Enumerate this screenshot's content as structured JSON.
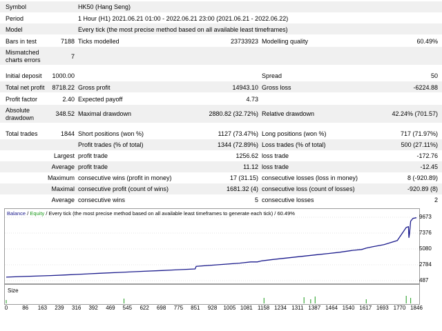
{
  "report": {
    "symbol_label": "Symbol",
    "symbol_value": "HK50 (Hang Seng)",
    "period_label": "Period",
    "period_value": "1 Hour (H1) 2021.06.21 01:00 - 2022.06.21 23:00 (2021.06.21 - 2022.06.22)",
    "model_label": "Model",
    "model_value": "Every tick (the most precise method based on all available least timeframes)",
    "bars_label": "Bars in test",
    "bars_value": "7188",
    "ticks_label": "Ticks modelled",
    "ticks_value": "23733923",
    "quality_label": "Modelling quality",
    "quality_value": "60.49%",
    "mismatch_label_1": "Mismatched",
    "mismatch_label_2": "charts errors",
    "mismatch_value": "7",
    "deposit_label": "Initial deposit",
    "deposit_value": "1000.00",
    "spread_label": "Spread",
    "spread_value": "50",
    "netprofit_label": "Total net profit",
    "netprofit_value": "8718.22",
    "grossprofit_label": "Gross profit",
    "grossprofit_value": "14943.10",
    "grossloss_label": "Gross loss",
    "grossloss_value": "-6224.88",
    "pf_label": "Profit factor",
    "pf_value": "2.40",
    "ep_label": "Expected payoff",
    "ep_value": "4.73",
    "absdd_label_1": "Absolute",
    "absdd_label_2": "drawdown",
    "absdd_value": "348.52",
    "maxdd_label": "Maximal drawdown",
    "maxdd_value": "2880.82 (32.72%)",
    "reldd_label": "Relative drawdown",
    "reldd_value": "42.24% (701.57)",
    "trades_label": "Total trades",
    "trades_value": "1844",
    "short_label": "Short positions (won %)",
    "short_value": "1127 (73.47%)",
    "long_label": "Long positions (won %)",
    "long_value": "717 (71.97%)",
    "ptrades_label": "Profit trades (% of total)",
    "ptrades_value": "1344 (72.89%)",
    "ltrades_label": "Loss trades (% of total)",
    "ltrades_value": "500 (27.11%)",
    "largest_label": "Largest",
    "largest_profit_label": "profit trade",
    "largest_profit_value": "1256.62",
    "largest_loss_label": "loss trade",
    "largest_loss_value": "-172.76",
    "average_label": "Average",
    "average_profit_label": "profit trade",
    "average_profit_value": "11.12",
    "average_loss_label": "loss trade",
    "average_loss_value": "-12.45",
    "maximum_label": "Maximum",
    "max_cw_label": "consecutive wins (profit in money)",
    "max_cw_value": "17 (31.15)",
    "max_cl_label": "consecutive losses (loss in money)",
    "max_cl_value": "8 (-920.89)",
    "maximal_label": "Maximal",
    "mx_cp_label": "consecutive profit (count of wins)",
    "mx_cp_value": "1681.32 (4)",
    "mx_cl_label": "consecutive loss (count of losses)",
    "mx_cl_value": "-920.89 (8)",
    "avg_label": "Average",
    "avg_cw_label": "consecutive wins",
    "avg_cw_value": "5",
    "avg_cl_label": "consecutive losses",
    "avg_cl_value": "2"
  },
  "chart_header": {
    "balance": "Balance",
    "sep1": " / ",
    "equity": "Equity",
    "rest": " / Every tick (the most precise method based on all available least timeframes to generate each tick) / 60.49%"
  },
  "size_label": "Size",
  "colors": {
    "balance": "#1a1a8c",
    "equity": "#1a9a1a",
    "size_bars": "#1a9a1a",
    "shade": "#f0f0f0"
  },
  "chart_data": {
    "type": "line",
    "title": "Balance / Equity",
    "y_ticks": [
      "9673",
      "7376",
      "5080",
      "2784",
      "487"
    ],
    "ylim": [
      487,
      9673
    ],
    "x_ticks": [
      "0",
      "86",
      "163",
      "239",
      "316",
      "392",
      "469",
      "545",
      "622",
      "698",
      "775",
      "851",
      "928",
      "1005",
      "1081",
      "1158",
      "1234",
      "1311",
      "1387",
      "1464",
      "1540",
      "1617",
      "1693",
      "1770",
      "1846"
    ],
    "xlim": [
      0,
      1846
    ],
    "series": [
      {
        "name": "Balance",
        "x": [
          0,
          60,
          130,
          200,
          260,
          320,
          420,
          520,
          620,
          700,
          760,
          850,
          855,
          950,
          1050,
          1100,
          1130,
          1150,
          1200,
          1300,
          1400,
          1450,
          1500,
          1560,
          1600,
          1620,
          1650,
          1700,
          1720,
          1760,
          1800,
          1810,
          1812,
          1815,
          1820,
          1830,
          1846
        ],
        "y": [
          1000,
          1080,
          1150,
          1230,
          1310,
          1400,
          1560,
          1700,
          1840,
          1950,
          2040,
          2180,
          2560,
          2780,
          3020,
          3200,
          3200,
          3350,
          3550,
          3900,
          4250,
          4420,
          4600,
          4880,
          5000,
          5200,
          5400,
          5700,
          5900,
          6300,
          8200,
          8300,
          6700,
          7300,
          9100,
          9500,
          9600
        ]
      }
    ],
    "size_spikes": [
      {
        "x": 0,
        "h": 0.25
      },
      {
        "x": 530,
        "h": 0.35
      },
      {
        "x": 1160,
        "h": 0.4
      },
      {
        "x": 1340,
        "h": 0.45
      },
      {
        "x": 1370,
        "h": 0.3
      },
      {
        "x": 1390,
        "h": 0.5
      },
      {
        "x": 1620,
        "h": 0.3
      },
      {
        "x": 1800,
        "h": 0.55
      },
      {
        "x": 1820,
        "h": 0.4
      }
    ]
  }
}
